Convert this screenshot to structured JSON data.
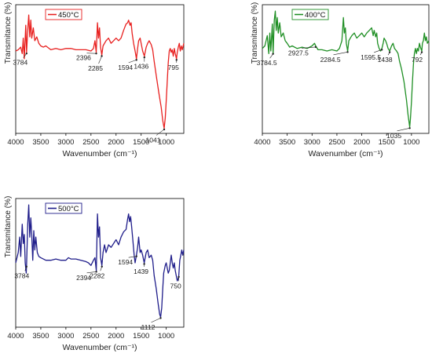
{
  "chart_data": [
    {
      "type": "line",
      "series_name": "450°C",
      "color": "#e8201f",
      "xlabel": "Wavenumber (cm⁻¹)",
      "ylabel": "Transmitance (%)",
      "xlim": [
        4000,
        650
      ],
      "xticks": [
        4000,
        3500,
        3000,
        2500,
        2000,
        1500,
        1000
      ],
      "legend_position": "top-left",
      "points": [
        [
          4000,
          0.36
        ],
        [
          3950,
          0.35
        ],
        [
          3900,
          0.33
        ],
        [
          3870,
          0.38
        ],
        [
          3850,
          0.26
        ],
        [
          3830,
          0.42
        ],
        [
          3800,
          0.16
        ],
        [
          3784,
          0.37
        ],
        [
          3760,
          0.2
        ],
        [
          3740,
          0.08
        ],
        [
          3720,
          0.25
        ],
        [
          3700,
          0.12
        ],
        [
          3680,
          0.26
        ],
        [
          3650,
          0.18
        ],
        [
          3620,
          0.28
        ],
        [
          3580,
          0.25
        ],
        [
          3540,
          0.3
        ],
        [
          3500,
          0.32
        ],
        [
          3450,
          0.33
        ],
        [
          3400,
          0.32
        ],
        [
          3300,
          0.35
        ],
        [
          3200,
          0.34
        ],
        [
          3100,
          0.35
        ],
        [
          3000,
          0.34
        ],
        [
          2900,
          0.34
        ],
        [
          2800,
          0.35
        ],
        [
          2700,
          0.35
        ],
        [
          2600,
          0.35
        ],
        [
          2500,
          0.36
        ],
        [
          2450,
          0.34
        ],
        [
          2420,
          0.28
        ],
        [
          2396,
          0.37
        ],
        [
          2370,
          0.14
        ],
        [
          2350,
          0.26
        ],
        [
          2330,
          0.18
        ],
        [
          2310,
          0.33
        ],
        [
          2285,
          0.39
        ],
        [
          2260,
          0.32
        ],
        [
          2230,
          0.3
        ],
        [
          2200,
          0.28
        ],
        [
          2150,
          0.26
        ],
        [
          2100,
          0.3
        ],
        [
          2050,
          0.28
        ],
        [
          2000,
          0.26
        ],
        [
          1950,
          0.28
        ],
        [
          1900,
          0.26
        ],
        [
          1850,
          0.2
        ],
        [
          1800,
          0.15
        ],
        [
          1770,
          0.14
        ],
        [
          1750,
          0.12
        ],
        [
          1720,
          0.16
        ],
        [
          1700,
          0.14
        ],
        [
          1680,
          0.22
        ],
        [
          1650,
          0.3
        ],
        [
          1620,
          0.36
        ],
        [
          1594,
          0.42
        ],
        [
          1570,
          0.34
        ],
        [
          1550,
          0.28
        ],
        [
          1520,
          0.26
        ],
        [
          1500,
          0.3
        ],
        [
          1470,
          0.36
        ],
        [
          1436,
          0.4
        ],
        [
          1400,
          0.33
        ],
        [
          1370,
          0.3
        ],
        [
          1340,
          0.28
        ],
        [
          1300,
          0.31
        ],
        [
          1270,
          0.35
        ],
        [
          1240,
          0.44
        ],
        [
          1200,
          0.55
        ],
        [
          1150,
          0.68
        ],
        [
          1100,
          0.8
        ],
        [
          1070,
          0.9
        ],
        [
          1041,
          0.96
        ],
        [
          1020,
          0.88
        ],
        [
          1000,
          0.75
        ],
        [
          980,
          0.6
        ],
        [
          960,
          0.45
        ],
        [
          940,
          0.36
        ],
        [
          920,
          0.34
        ],
        [
          900,
          0.37
        ],
        [
          880,
          0.35
        ],
        [
          860,
          0.4
        ],
        [
          840,
          0.34
        ],
        [
          820,
          0.38
        ],
        [
          795,
          0.42
        ],
        [
          780,
          0.37
        ],
        [
          760,
          0.33
        ],
        [
          740,
          0.3
        ],
        [
          720,
          0.36
        ],
        [
          700,
          0.32
        ],
        [
          680,
          0.35
        ],
        [
          650,
          0.3
        ]
      ],
      "annotations": [
        {
          "x": 3784,
          "label": "3784"
        },
        {
          "x": 2396,
          "label": "2396"
        },
        {
          "x": 2285,
          "label": "2285"
        },
        {
          "x": 1594,
          "label": "1594"
        },
        {
          "x": 1436,
          "label": "1436"
        },
        {
          "x": 1041,
          "label": "1041"
        },
        {
          "x": 795,
          "label": "795"
        }
      ]
    },
    {
      "type": "line",
      "series_name": "400°C",
      "color": "#1f8f24",
      "xlabel": "Wavenumber (cm⁻¹)",
      "ylabel": "Transmitance (%)",
      "xlim": [
        4000,
        650
      ],
      "xticks": [
        4000,
        3500,
        3000,
        2500,
        2000,
        1500,
        1000
      ],
      "legend_position": "top-left",
      "points": [
        [
          4000,
          0.34
        ],
        [
          3950,
          0.32
        ],
        [
          3900,
          0.24
        ],
        [
          3870,
          0.38
        ],
        [
          3850,
          0.22
        ],
        [
          3830,
          0.36
        ],
        [
          3800,
          0.15
        ],
        [
          3784,
          0.38
        ],
        [
          3760,
          0.12
        ],
        [
          3740,
          0.05
        ],
        [
          3720,
          0.2
        ],
        [
          3700,
          0.1
        ],
        [
          3680,
          0.22
        ],
        [
          3650,
          0.14
        ],
        [
          3620,
          0.25
        ],
        [
          3580,
          0.22
        ],
        [
          3540,
          0.28
        ],
        [
          3500,
          0.3
        ],
        [
          3450,
          0.33
        ],
        [
          3400,
          0.32
        ],
        [
          3300,
          0.34
        ],
        [
          3200,
          0.33
        ],
        [
          3100,
          0.34
        ],
        [
          3000,
          0.32
        ],
        [
          2950,
          0.3
        ],
        [
          2927,
          0.32
        ],
        [
          2880,
          0.35
        ],
        [
          2800,
          0.35
        ],
        [
          2700,
          0.36
        ],
        [
          2600,
          0.35
        ],
        [
          2500,
          0.36
        ],
        [
          2450,
          0.34
        ],
        [
          2400,
          0.28
        ],
        [
          2370,
          0.1
        ],
        [
          2350,
          0.22
        ],
        [
          2330,
          0.18
        ],
        [
          2310,
          0.3
        ],
        [
          2284,
          0.36
        ],
        [
          2260,
          0.28
        ],
        [
          2230,
          0.26
        ],
        [
          2200,
          0.24
        ],
        [
          2150,
          0.22
        ],
        [
          2100,
          0.26
        ],
        [
          2050,
          0.24
        ],
        [
          2000,
          0.22
        ],
        [
          1950,
          0.25
        ],
        [
          1900,
          0.22
        ],
        [
          1850,
          0.2
        ],
        [
          1800,
          0.18
        ],
        [
          1770,
          0.24
        ],
        [
          1750,
          0.2
        ],
        [
          1720,
          0.25
        ],
        [
          1700,
          0.22
        ],
        [
          1680,
          0.3
        ],
        [
          1650,
          0.34
        ],
        [
          1620,
          0.36
        ],
        [
          1595,
          0.34
        ],
        [
          1570,
          0.3
        ],
        [
          1550,
          0.26
        ],
        [
          1520,
          0.28
        ],
        [
          1500,
          0.3
        ],
        [
          1470,
          0.34
        ],
        [
          1438,
          0.36
        ],
        [
          1400,
          0.32
        ],
        [
          1370,
          0.3
        ],
        [
          1340,
          0.34
        ],
        [
          1300,
          0.36
        ],
        [
          1270,
          0.38
        ],
        [
          1240,
          0.44
        ],
        [
          1200,
          0.5
        ],
        [
          1150,
          0.6
        ],
        [
          1100,
          0.74
        ],
        [
          1070,
          0.85
        ],
        [
          1035,
          0.95
        ],
        [
          1020,
          0.88
        ],
        [
          1000,
          0.75
        ],
        [
          980,
          0.6
        ],
        [
          960,
          0.46
        ],
        [
          940,
          0.38
        ],
        [
          920,
          0.34
        ],
        [
          900,
          0.38
        ],
        [
          880,
          0.34
        ],
        [
          860,
          0.36
        ],
        [
          840,
          0.3
        ],
        [
          820,
          0.33
        ],
        [
          792,
          0.36
        ],
        [
          780,
          0.3
        ],
        [
          760,
          0.28
        ],
        [
          740,
          0.22
        ],
        [
          720,
          0.28
        ],
        [
          700,
          0.25
        ],
        [
          680,
          0.3
        ],
        [
          650,
          0.28
        ]
      ],
      "annotations": [
        {
          "x": 3784.5,
          "label": "3784.5"
        },
        {
          "x": 2927.5,
          "label": "2927.5"
        },
        {
          "x": 2284.5,
          "label": "2284.5"
        },
        {
          "x": 1595.5,
          "label": "1595.5"
        },
        {
          "x": 1438,
          "label": "1438"
        },
        {
          "x": 1035,
          "label": "1035"
        },
        {
          "x": 792,
          "label": "792"
        }
      ]
    },
    {
      "type": "line",
      "series_name": "500°C",
      "color": "#1f1d8a",
      "xlabel": "Wavenumber (cm⁻¹)",
      "ylabel": "Transmitance (%)",
      "xlim": [
        4000,
        650
      ],
      "xticks": [
        4000,
        3500,
        3000,
        2500,
        2000,
        1500,
        1000
      ],
      "legend_position": "top-left",
      "points": [
        [
          4000,
          0.5
        ],
        [
          3950,
          0.42
        ],
        [
          3920,
          0.3
        ],
        [
          3900,
          0.45
        ],
        [
          3870,
          0.2
        ],
        [
          3850,
          0.35
        ],
        [
          3830,
          0.28
        ],
        [
          3810,
          0.5
        ],
        [
          3790,
          0.58
        ],
        [
          3784,
          0.52
        ],
        [
          3760,
          0.2
        ],
        [
          3740,
          0.05
        ],
        [
          3720,
          0.3
        ],
        [
          3700,
          0.15
        ],
        [
          3680,
          0.28
        ],
        [
          3660,
          0.48
        ],
        [
          3640,
          0.25
        ],
        [
          3620,
          0.4
        ],
        [
          3600,
          0.3
        ],
        [
          3570,
          0.42
        ],
        [
          3540,
          0.45
        ],
        [
          3500,
          0.46
        ],
        [
          3450,
          0.47
        ],
        [
          3400,
          0.48
        ],
        [
          3300,
          0.48
        ],
        [
          3200,
          0.47
        ],
        [
          3100,
          0.48
        ],
        [
          3000,
          0.48
        ],
        [
          2950,
          0.46
        ],
        [
          2900,
          0.47
        ],
        [
          2800,
          0.47
        ],
        [
          2700,
          0.48
        ],
        [
          2600,
          0.49
        ],
        [
          2550,
          0.5
        ],
        [
          2500,
          0.52
        ],
        [
          2450,
          0.48
        ],
        [
          2420,
          0.46
        ],
        [
          2394,
          0.56
        ],
        [
          2370,
          0.12
        ],
        [
          2350,
          0.3
        ],
        [
          2330,
          0.22
        ],
        [
          2310,
          0.46
        ],
        [
          2282,
          0.52
        ],
        [
          2260,
          0.42
        ],
        [
          2230,
          0.36
        ],
        [
          2200,
          0.42
        ],
        [
          2150,
          0.36
        ],
        [
          2100,
          0.38
        ],
        [
          2050,
          0.35
        ],
        [
          2000,
          0.32
        ],
        [
          1950,
          0.36
        ],
        [
          1900,
          0.3
        ],
        [
          1850,
          0.26
        ],
        [
          1800,
          0.24
        ],
        [
          1770,
          0.16
        ],
        [
          1750,
          0.12
        ],
        [
          1730,
          0.18
        ],
        [
          1710,
          0.14
        ],
        [
          1690,
          0.22
        ],
        [
          1670,
          0.3
        ],
        [
          1640,
          0.44
        ],
        [
          1620,
          0.5
        ],
        [
          1594,
          0.44
        ],
        [
          1570,
          0.38
        ],
        [
          1550,
          0.3
        ],
        [
          1520,
          0.42
        ],
        [
          1500,
          0.4
        ],
        [
          1470,
          0.44
        ],
        [
          1439,
          0.5
        ],
        [
          1400,
          0.42
        ],
        [
          1370,
          0.4
        ],
        [
          1340,
          0.46
        ],
        [
          1300,
          0.44
        ],
        [
          1270,
          0.48
        ],
        [
          1240,
          0.6
        ],
        [
          1200,
          0.7
        ],
        [
          1160,
          0.82
        ],
        [
          1130,
          0.9
        ],
        [
          1112,
          0.92
        ],
        [
          1090,
          0.85
        ],
        [
          1070,
          0.7
        ],
        [
          1050,
          0.58
        ],
        [
          1020,
          0.52
        ],
        [
          1000,
          0.5
        ],
        [
          980,
          0.54
        ],
        [
          960,
          0.58
        ],
        [
          940,
          0.56
        ],
        [
          920,
          0.5
        ],
        [
          900,
          0.44
        ],
        [
          880,
          0.5
        ],
        [
          860,
          0.54
        ],
        [
          840,
          0.5
        ],
        [
          820,
          0.56
        ],
        [
          800,
          0.6
        ],
        [
          780,
          0.64
        ],
        [
          760,
          0.62
        ],
        [
          750,
          0.6
        ],
        [
          730,
          0.48
        ],
        [
          710,
          0.44
        ],
        [
          690,
          0.4
        ],
        [
          670,
          0.44
        ],
        [
          650,
          0.4
        ]
      ],
      "annotations": [
        {
          "x": 3784,
          "label": "3784"
        },
        {
          "x": 2394,
          "label": "2394"
        },
        {
          "x": 2282,
          "label": "2282"
        },
        {
          "x": 1594,
          "label": "1594"
        },
        {
          "x": 1439,
          "label": "1439"
        },
        {
          "x": 1112,
          "label": "1112"
        },
        {
          "x": 750,
          "label": "750"
        }
      ]
    }
  ]
}
